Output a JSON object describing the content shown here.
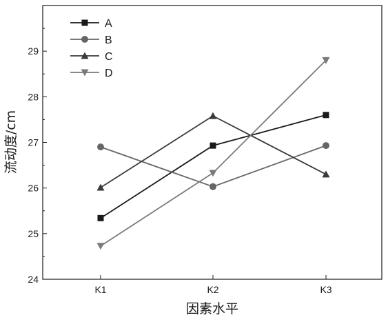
{
  "chart_data": {
    "type": "line",
    "title": "",
    "xlabel": "因素水平",
    "ylabel": "流动度/cm",
    "categories": [
      "K1",
      "K2",
      "K3"
    ],
    "ylim": [
      24,
      30
    ],
    "yticks": [
      24,
      25,
      26,
      27,
      28,
      29
    ],
    "grid": false,
    "legend_position": "top-left",
    "series": [
      {
        "name": "A",
        "values": [
          25.34,
          26.93,
          27.6
        ],
        "color": "#1a1a1a",
        "marker": "square"
      },
      {
        "name": "B",
        "values": [
          26.9,
          26.03,
          26.93
        ],
        "color": "#666666",
        "marker": "circle"
      },
      {
        "name": "C",
        "values": [
          26.01,
          27.58,
          26.3
        ],
        "color": "#3a3a3a",
        "marker": "triangle-up"
      },
      {
        "name": "D",
        "values": [
          24.73,
          26.33,
          28.8
        ],
        "color": "#7a7a7a",
        "marker": "triangle-down"
      }
    ]
  }
}
